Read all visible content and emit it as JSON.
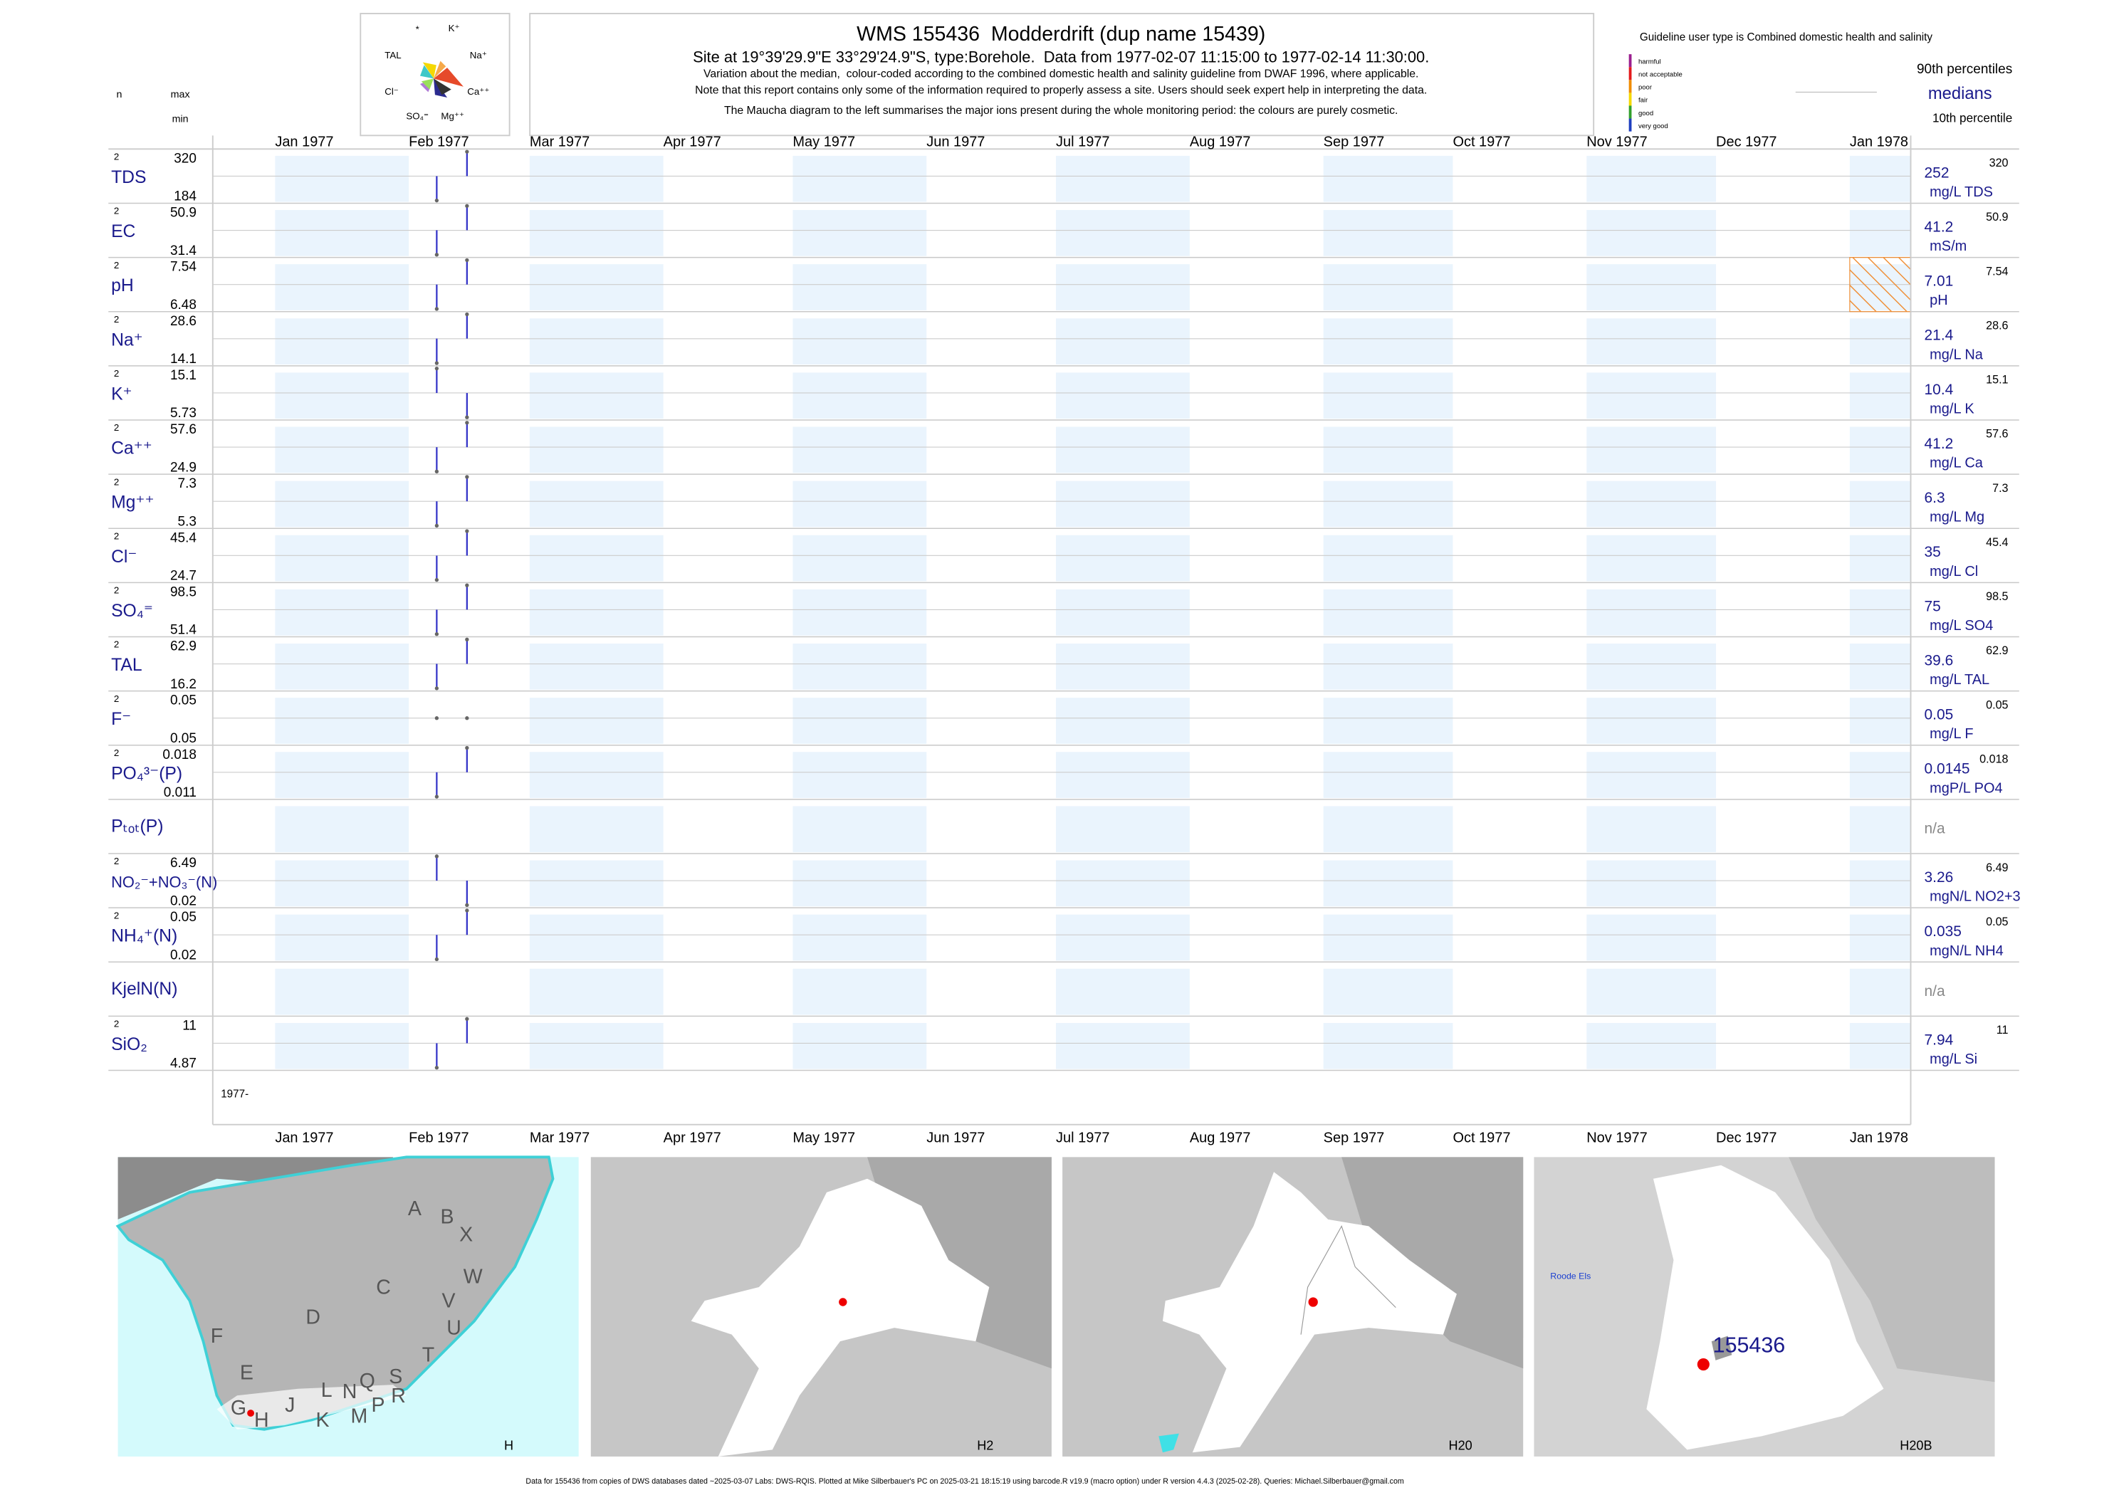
{
  "maucha_labels": [
    "*",
    "K⁺",
    "TAL",
    "Na⁺",
    "Cl⁻",
    "Ca⁺⁺",
    "SO₄⁼",
    "Mg⁺⁺"
  ],
  "title": "WMS 155436  Modderdrift (dup name 15439)",
  "subtitle": "Site at 19°39'29.9\"E 33°29'24.9\"S, type:Borehole.  Data from 1977-02-07 11:15:00 to 1977-02-14 11:30:00.",
  "notes": [
    "Variation about the median,  colour-coded according to the combined domestic health and salinity guideline from DWAF 1996, where applicable.",
    "Note that this report contains only some of the information required to properly assess a site. Users should seek expert help in interpreting the data.",
    "The Maucha diagram to the left summarises the major ions present during the whole monitoring period: the colours are purely cosmetic."
  ],
  "guideline_text": "Guideline user type is Combined domestic health and salinity",
  "guideline_legend": [
    {
      "label": "harmful",
      "color": "#9b1f8f"
    },
    {
      "label": "not acceptable",
      "color": "#e31a1c"
    },
    {
      "label": "poor",
      "color": "#f08c00"
    },
    {
      "label": "fair",
      "color": "#f5d800"
    },
    {
      "label": "good",
      "color": "#33a02c"
    },
    {
      "label": "very good",
      "color": "#1f3fbf"
    }
  ],
  "legend_texts": {
    "p90": "90th percentiles",
    "median": "medians",
    "p10": "10th percentile"
  },
  "column_headers": {
    "n": "n",
    "max": "max",
    "min": "min"
  },
  "months": [
    "Jan 1977",
    "Feb 1977",
    "Mar 1977",
    "Apr 1977",
    "May 1977",
    "Jun 1977",
    "Jul 1977",
    "Aug 1977",
    "Sep 1977",
    "Oct 1977",
    "Nov 1977",
    "Dec 1977",
    "Jan 1978"
  ],
  "sample_dates": [
    "1977-02-07 11:15:00",
    "1977-02-14 11:30:00"
  ],
  "axis_start_label": "1977-",
  "sample_color": "#3535c8",
  "rows": [
    {
      "label": "TDS",
      "n": 2,
      "max": 320,
      "min": 184,
      "median": 252,
      "unit": "mg/L TDS",
      "values": [
        184,
        320
      ]
    },
    {
      "label": "EC",
      "n": 2,
      "max": 50.9,
      "min": 31.4,
      "median": 41.2,
      "unit": "mS/m",
      "values": [
        31.4,
        50.9
      ]
    },
    {
      "label": "pH",
      "n": 2,
      "max": 7.54,
      "min": 6.48,
      "median": 7.01,
      "unit": "pH",
      "values": [
        6.48,
        7.54
      ],
      "flag_color": "#f08c30"
    },
    {
      "label": "Na⁺",
      "n": 2,
      "max": 28.6,
      "min": 14.1,
      "median": 21.4,
      "unit": "mg/L Na",
      "values": [
        14.1,
        28.6
      ]
    },
    {
      "label": "K⁺",
      "n": 2,
      "max": 15.1,
      "min": 5.73,
      "median": 10.4,
      "unit": "mg/L K",
      "values": [
        15.1,
        5.73
      ]
    },
    {
      "label": "Ca⁺⁺",
      "n": 2,
      "max": 57.6,
      "min": 24.9,
      "median": 41.2,
      "unit": "mg/L Ca",
      "values": [
        24.9,
        57.6
      ]
    },
    {
      "label": "Mg⁺⁺",
      "n": 2,
      "max": 7.3,
      "min": 5.3,
      "median": 6.3,
      "unit": "mg/L Mg",
      "values": [
        5.3,
        7.3
      ]
    },
    {
      "label": "Cl⁻",
      "n": 2,
      "max": 45.4,
      "min": 24.7,
      "median": 35,
      "unit": "mg/L Cl",
      "values": [
        24.7,
        45.4
      ]
    },
    {
      "label": "SO₄⁼",
      "n": 2,
      "max": 98.5,
      "min": 51.4,
      "median": 75,
      "unit": "mg/L SO4",
      "values": [
        51.4,
        98.5
      ]
    },
    {
      "label": "TAL",
      "n": 2,
      "max": 62.9,
      "min": 16.2,
      "median": 39.6,
      "unit": "mg/L TAL",
      "values": [
        16.2,
        62.9
      ]
    },
    {
      "label": "F⁻",
      "n": 2,
      "max": 0.05,
      "min": 0.05,
      "median": 0.05,
      "unit": "mg/L F",
      "values": [
        0.05,
        0.05
      ]
    },
    {
      "label": "PO₄³⁻(P)",
      "n": 2,
      "max": 0.018,
      "min": 0.011,
      "median": 0.0145,
      "unit": "mgP/L PO4",
      "values": [
        0.011,
        0.018
      ]
    },
    {
      "label": "Pₜₒₜ(P)",
      "median_label": "n/a"
    },
    {
      "label": "NO₂⁻+NO₃⁻(N)",
      "n": 2,
      "max": 6.49,
      "min": 0.02,
      "median": 3.26,
      "unit": "mgN/L NO2+3",
      "values": [
        6.49,
        0.02
      ]
    },
    {
      "label": "NH₄⁺(N)",
      "n": 2,
      "max": 0.05,
      "min": 0.02,
      "median": 0.035,
      "unit": "mgN/L NH4",
      "values": [
        0.02,
        0.05
      ]
    },
    {
      "label": "KjelN(N)",
      "median_label": "n/a"
    },
    {
      "label": "SiO₂",
      "n": 2,
      "max": 11,
      "min": 4.87,
      "median": 7.94,
      "unit": "mg/L Si",
      "values": [
        4.87,
        11
      ]
    }
  ],
  "maps": [
    {
      "label": "H",
      "letters": [
        "A",
        "B",
        "X",
        "W",
        "C",
        "V",
        "U",
        "D",
        "F",
        "T",
        "E",
        "S",
        "R",
        "Q",
        "N",
        "L",
        "M",
        "P",
        "J",
        "K",
        "G",
        "H"
      ]
    },
    {
      "label": "H2"
    },
    {
      "label": "H20"
    },
    {
      "label": "H20B",
      "site": "155436",
      "place": "Roode Els"
    }
  ],
  "footer": "Data for 155436 from copies of DWS databases dated ~2025-03-07 Labs: DWS-RQIS. Plotted at Mike Silberbauer's PC on 2025-03-21 18:15:19 using barcode.R v19.9 (macro option) under R version 4.4.3 (2025-02-28). Queries: Michael.Silberbauer@gmail.com"
}
